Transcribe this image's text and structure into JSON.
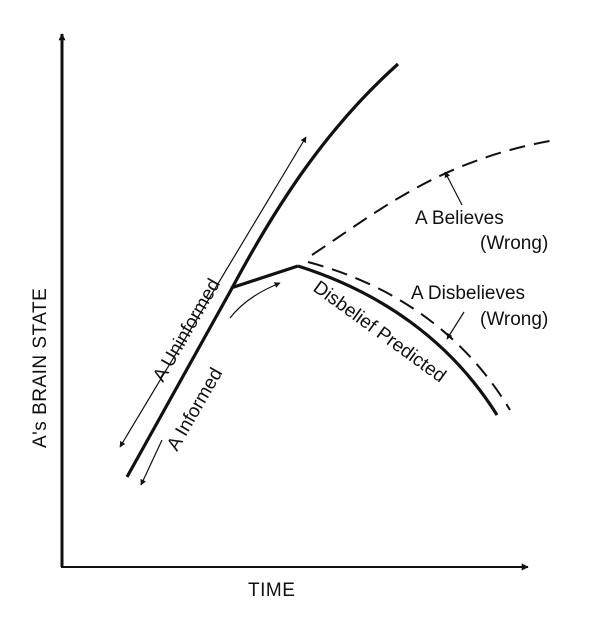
{
  "axes": {
    "x_label": "TIME",
    "y_label": "A's BRAIN STATE"
  },
  "labels": {
    "uninformed": "A  Uninformed",
    "informed": "A  Informed",
    "disbelief_predicted": "Disbelief  Predicted",
    "believes": "A  Believes",
    "believes_note": "(Wrong)",
    "disbelieves": "A  Disbelieves",
    "disbelieves_note": "(Wrong)"
  },
  "colors": {
    "ink": "#111111",
    "background": "#ffffff"
  }
}
